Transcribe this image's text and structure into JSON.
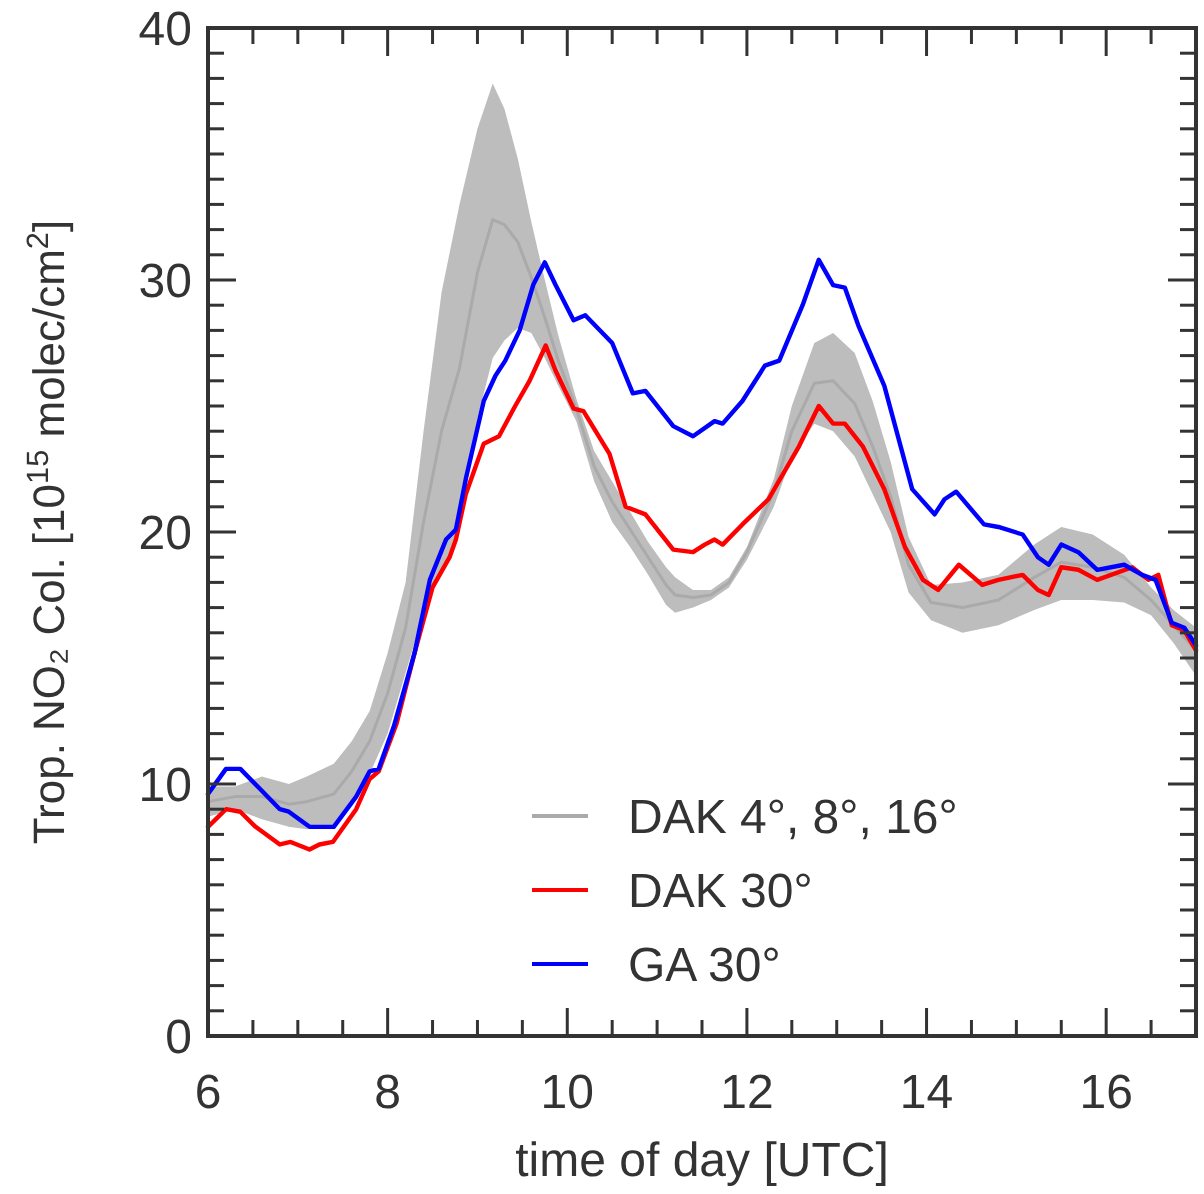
{
  "chart_data": {
    "type": "line",
    "xlabel": "time of day [UTC]",
    "ylabel": "Trop. NO₂ Col. [10$^{15}$ molec/cm$^{2}$]",
    "xlim": [
      6,
      17
    ],
    "ylim": [
      0,
      40
    ],
    "xticks": [
      6,
      {
        "value": 6.5,
        "label": null
      },
      {
        "value": 7,
        "label": null
      },
      {
        "value": 7.5,
        "label": null
      },
      8,
      {
        "value": 8.5,
        "label": null
      },
      {
        "value": 9,
        "label": null
      },
      {
        "value": 9.5,
        "label": null
      },
      10,
      {
        "value": 10.5,
        "label": null
      },
      {
        "value": 11,
        "label": null
      },
      {
        "value": 11.5,
        "label": null
      },
      12,
      {
        "value": 12.5,
        "label": null
      },
      {
        "value": 13,
        "label": null
      },
      {
        "value": 13.5,
        "label": null
      },
      14,
      {
        "value": 14.5,
        "label": null
      },
      {
        "value": 15,
        "label": null
      },
      {
        "value": 15.5,
        "label": null
      },
      16,
      {
        "value": 16.5,
        "label": null
      }
    ],
    "yticks": [
      0,
      {
        "value": 1,
        "label": null
      },
      {
        "value": 2,
        "label": null
      },
      {
        "value": 3,
        "label": null
      },
      {
        "value": 4,
        "label": null
      },
      {
        "value": 5,
        "label": null
      },
      {
        "value": 6,
        "label": null
      },
      {
        "value": 7,
        "label": null
      },
      {
        "value": 8,
        "label": null
      },
      {
        "value": 9,
        "label": null
      },
      10,
      {
        "value": 11,
        "label": null
      },
      {
        "value": 12,
        "label": null
      },
      {
        "value": 13,
        "label": null
      },
      {
        "value": 14,
        "label": null
      },
      {
        "value": 15,
        "label": null
      },
      {
        "value": 16,
        "label": null
      },
      {
        "value": 17,
        "label": null
      },
      {
        "value": 18,
        "label": null
      },
      {
        "value": 19,
        "label": null
      },
      20,
      {
        "value": 21,
        "label": null
      },
      {
        "value": 22,
        "label": null
      },
      {
        "value": 23,
        "label": null
      },
      {
        "value": 24,
        "label": null
      },
      {
        "value": 25,
        "label": null
      },
      {
        "value": 26,
        "label": null
      },
      {
        "value": 27,
        "label": null
      },
      {
        "value": 28,
        "label": null
      },
      {
        "value": 29,
        "label": null
      },
      30,
      {
        "value": 31,
        "label": null
      },
      {
        "value": 32,
        "label": null
      },
      {
        "value": 33,
        "label": null
      },
      {
        "value": 34,
        "label": null
      },
      {
        "value": 35,
        "label": null
      },
      {
        "value": 36,
        "label": null
      },
      {
        "value": 37,
        "label": null
      },
      {
        "value": 38,
        "label": null
      },
      {
        "value": 39,
        "label": null
      },
      40
    ],
    "grid": false,
    "legend": "bottom right",
    "marker": "none",
    "line_style": "solid",
    "series": [
      {
        "name": "DAK 4°, 8°, 16°",
        "color": "#aaaaaa",
        "x": [
          6.0,
          6.3,
          6.6,
          6.9,
          7.1,
          7.4,
          7.6,
          7.8,
          8.0,
          8.2,
          8.4,
          8.6,
          8.8,
          9.0,
          9.17,
          9.3,
          9.45,
          9.6,
          9.75,
          9.9,
          10.1,
          10.3,
          10.5,
          10.7,
          10.9,
          11.1,
          11.2,
          11.4,
          11.6,
          11.8,
          12.0,
          12.3,
          12.5,
          12.75,
          12.96,
          13.2,
          13.4,
          13.6,
          13.8,
          14.05,
          14.4,
          14.8,
          15.2,
          15.5,
          15.85,
          16.2,
          16.5,
          16.75,
          17.0
        ],
        "values": [
          9.3,
          9.5,
          9.5,
          9.2,
          9.3,
          9.6,
          10.5,
          11.7,
          13.6,
          16.2,
          20.4,
          24.0,
          26.5,
          30.3,
          32.4,
          32.2,
          31.5,
          30.1,
          28.5,
          26.8,
          24.9,
          22.6,
          21.2,
          20.1,
          19.0,
          17.9,
          17.5,
          17.4,
          17.5,
          18.0,
          19.2,
          21.6,
          24.0,
          25.9,
          26.0,
          25.1,
          23.4,
          21.4,
          18.7,
          17.2,
          17.0,
          17.3,
          18.2,
          18.8,
          18.6,
          18.2,
          17.3,
          16.3,
          15.3
        ],
        "lower": [
          8.7,
          9.0,
          8.6,
          8.3,
          8.2,
          8.3,
          9.2,
          10.4,
          12.0,
          14.4,
          16.8,
          18.5,
          20.0,
          24.5,
          26.9,
          27.6,
          28.1,
          27.9,
          26.9,
          25.8,
          24.4,
          22.0,
          20.4,
          19.4,
          18.3,
          17.1,
          16.8,
          17.0,
          17.3,
          17.8,
          18.9,
          21.0,
          23.0,
          24.3,
          24.0,
          23.0,
          21.5,
          20.0,
          17.6,
          16.5,
          16.0,
          16.3,
          16.9,
          17.3,
          17.3,
          17.2,
          16.7,
          15.6,
          14.3
        ],
        "upper": [
          9.9,
          9.9,
          10.3,
          10.0,
          10.3,
          10.8,
          11.7,
          12.9,
          15.2,
          18.0,
          24.0,
          29.5,
          33.0,
          36.0,
          37.8,
          36.8,
          34.8,
          32.3,
          30.0,
          27.8,
          25.3,
          23.2,
          22.0,
          20.8,
          19.6,
          18.6,
          18.2,
          17.7,
          17.7,
          18.2,
          19.4,
          22.1,
          25.0,
          27.5,
          27.9,
          27.1,
          25.2,
          22.8,
          19.8,
          17.9,
          18.0,
          18.3,
          19.5,
          20.2,
          19.9,
          19.1,
          17.8,
          16.9,
          16.2
        ]
      },
      {
        "name": "DAK 30°",
        "color": "#ff0000",
        "x": [
          6.0,
          6.2,
          6.36,
          6.53,
          6.8,
          6.92,
          7.13,
          7.24,
          7.39,
          7.65,
          7.8,
          7.9,
          8.1,
          8.3,
          8.5,
          8.69,
          8.76,
          8.87,
          9.07,
          9.24,
          9.42,
          9.58,
          9.76,
          9.87,
          10.07,
          10.18,
          10.47,
          10.65,
          10.87,
          11.18,
          11.4,
          11.53,
          11.64,
          11.73,
          11.95,
          12.24,
          12.58,
          12.8,
          12.96,
          13.09,
          13.29,
          13.53,
          13.76,
          13.96,
          14.13,
          14.36,
          14.62,
          14.8,
          15.07,
          15.24,
          15.36,
          15.5,
          15.69,
          15.9,
          16.29,
          16.47,
          16.58,
          16.73,
          16.87,
          17.0
        ],
        "values": [
          8.3,
          9.0,
          8.9,
          8.3,
          7.6,
          7.7,
          7.4,
          7.6,
          7.7,
          9.0,
          10.2,
          10.5,
          12.4,
          15.2,
          17.8,
          19.0,
          19.7,
          21.5,
          23.5,
          23.8,
          25.0,
          26.0,
          27.4,
          26.4,
          24.9,
          24.8,
          23.1,
          21.0,
          20.7,
          19.3,
          19.2,
          19.5,
          19.7,
          19.5,
          20.3,
          21.3,
          23.4,
          25.0,
          24.3,
          24.3,
          23.4,
          21.7,
          19.4,
          18.1,
          17.7,
          18.7,
          17.9,
          18.1,
          18.3,
          17.7,
          17.5,
          18.6,
          18.5,
          18.1,
          18.6,
          18.1,
          18.3,
          16.3,
          16.1,
          15.3
        ]
      },
      {
        "name": "GA 30°",
        "color": "#0000ff",
        "x": [
          6.0,
          6.2,
          6.36,
          6.58,
          6.8,
          6.9,
          7.13,
          7.4,
          7.65,
          7.8,
          7.9,
          8.07,
          8.3,
          8.47,
          8.65,
          8.76,
          8.87,
          9.07,
          9.2,
          9.31,
          9.47,
          9.62,
          9.75,
          9.87,
          10.07,
          10.2,
          10.5,
          10.73,
          10.87,
          11.18,
          11.4,
          11.64,
          11.73,
          11.95,
          12.2,
          12.36,
          12.62,
          12.8,
          12.96,
          13.09,
          13.24,
          13.53,
          13.84,
          14.09,
          14.2,
          14.33,
          14.64,
          14.8,
          15.07,
          15.24,
          15.36,
          15.5,
          15.69,
          15.9,
          16.2,
          16.4,
          16.55,
          16.73,
          16.87,
          17.0
        ],
        "values": [
          9.6,
          10.6,
          10.6,
          9.8,
          9.0,
          8.9,
          8.3,
          8.3,
          9.5,
          10.5,
          10.6,
          12.3,
          15.2,
          18.1,
          19.7,
          20.1,
          22.1,
          25.2,
          26.2,
          26.8,
          28.0,
          29.8,
          30.7,
          29.8,
          28.4,
          28.6,
          27.5,
          25.5,
          25.6,
          24.2,
          23.8,
          24.4,
          24.3,
          25.2,
          26.6,
          26.8,
          29.0,
          30.8,
          29.8,
          29.7,
          28.2,
          25.8,
          21.7,
          20.7,
          21.3,
          21.6,
          20.3,
          20.2,
          19.9,
          19.0,
          18.7,
          19.5,
          19.2,
          18.5,
          18.7,
          18.3,
          18.1,
          16.4,
          16.2,
          15.5
        ]
      }
    ]
  }
}
